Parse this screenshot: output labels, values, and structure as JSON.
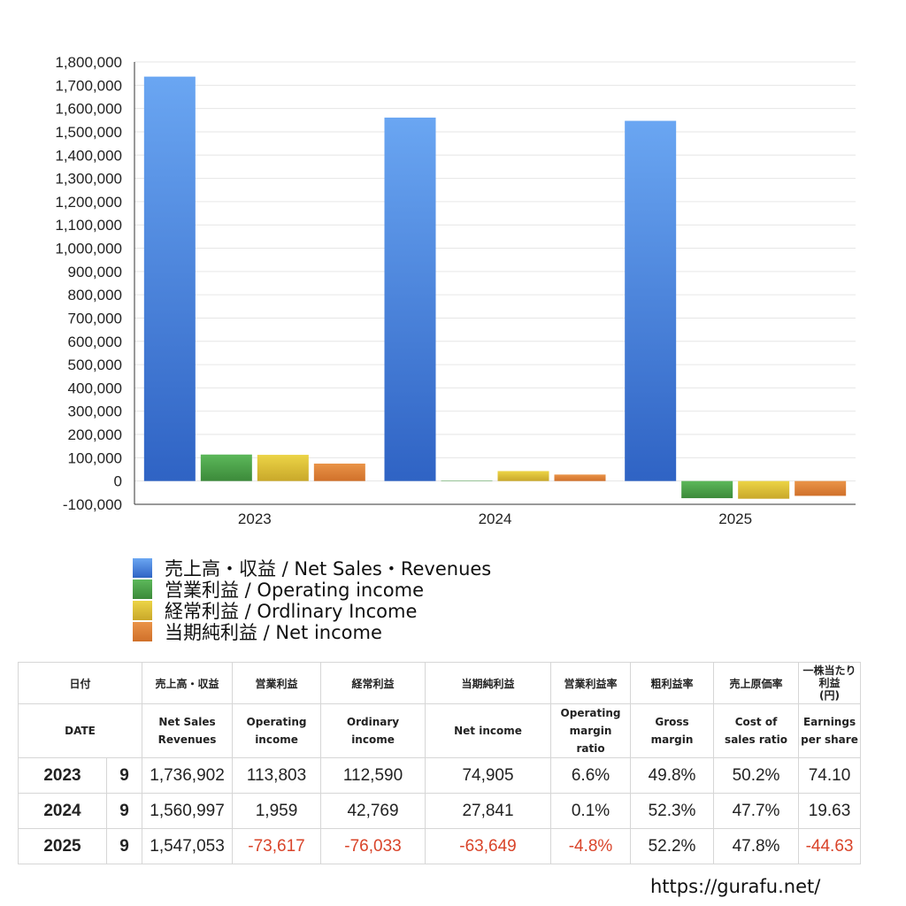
{
  "chart_data": {
    "type": "bar",
    "categories": [
      "2023",
      "2024",
      "2025"
    ],
    "series": [
      {
        "name": "売上高・収益 / Net Sales・Revenues",
        "values": [
          1736902,
          1560997,
          1547053
        ],
        "color": "#4a8ce0"
      },
      {
        "name": "営業利益 / Operating income",
        "values": [
          113803,
          1959,
          -73617
        ],
        "color": "#4ea84a"
      },
      {
        "name": "経常利益 / Ordlinary Income",
        "values": [
          112590,
          42769,
          -76033
        ],
        "color": "#e0c53a"
      },
      {
        "name": "当期純利益 / Net income",
        "values": [
          74905,
          27841,
          -63649
        ],
        "color": "#e0873a"
      }
    ],
    "ylim": [
      -100000,
      1800000
    ],
    "yticks": [
      "1,800,000",
      "1,700,000",
      "1,600,000",
      "1,500,000",
      "1,400,000",
      "1,300,000",
      "1,200,000",
      "1,100,000",
      "1,000,000",
      "900,000",
      "800,000",
      "700,000",
      "600,000",
      "500,000",
      "400,000",
      "300,000",
      "200,000",
      "100,000",
      "0",
      "-100,000"
    ],
    "grid": true,
    "legend_position": "bottom-left"
  },
  "table": {
    "headers_jp": [
      "日付",
      "売上高・収益",
      "営業利益",
      "経常利益",
      "当期純利益",
      "営業利益率",
      "粗利益率",
      "売上原価率",
      "一株当たり利益",
      "(円)"
    ],
    "headers_en": {
      "date": "DATE",
      "sales_1": "Net Sales",
      "sales_2": "Revenues",
      "op_1": "Operating",
      "op_2": "income",
      "ord_1": "Ordinary",
      "ord_2": "income",
      "net": "Net income",
      "opm_1": "Operating",
      "opm_2": "margin",
      "opm_3": "ratio",
      "gm_1": "Gross",
      "gm_2": "margin",
      "cost_1": "Cost of",
      "cost_2": "sales ratio",
      "eps_1": "Earnings",
      "eps_2": "per share"
    },
    "rows": [
      {
        "year": "2023",
        "month": "9",
        "sales": "1,736,902",
        "op": "113,803",
        "ord": "112,590",
        "net": "74,905",
        "opm": "6.6%",
        "gm": "49.8%",
        "cost": "50.2%",
        "eps": "74.10"
      },
      {
        "year": "2024",
        "month": "9",
        "sales": "1,560,997",
        "op": "1,959",
        "ord": "42,769",
        "net": "27,841",
        "opm": "0.1%",
        "gm": "52.3%",
        "cost": "47.7%",
        "eps": "19.63"
      },
      {
        "year": "2025",
        "month": "9",
        "sales": "1,547,053",
        "op": "-73,617",
        "ord": "-76,033",
        "net": "-63,649",
        "opm": "-4.8%",
        "gm": "52.2%",
        "cost": "47.8%",
        "eps": "-44.63"
      }
    ]
  },
  "footer": {
    "url": "https://gurafu.net/"
  }
}
